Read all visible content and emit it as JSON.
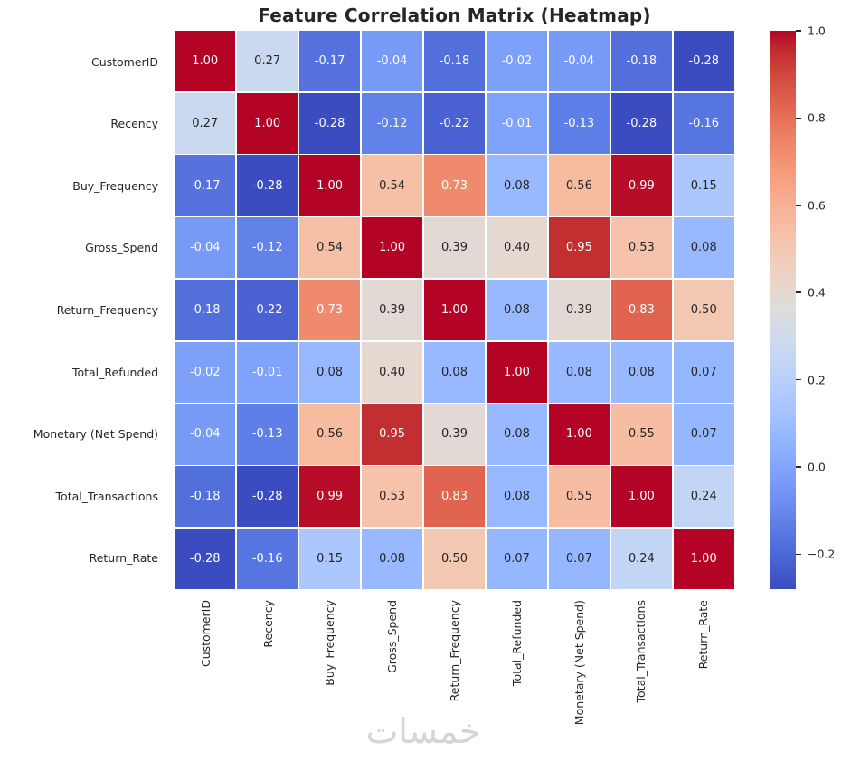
{
  "watermark_text": "خمسات",
  "colors": {
    "annot_dark": "#262626",
    "annot_light": "#ffffff",
    "axis_label": "#262626",
    "background": "#ffffff",
    "watermark": "#d5d5d5",
    "diag_red": "#b40426",
    "min_blue": "#3b4cc0"
  },
  "chart_data": {
    "type": "heatmap",
    "title": "Feature Correlation Matrix (Heatmap)",
    "categories": [
      "CustomerID",
      "Recency",
      "Buy_Frequency",
      "Gross_Spend",
      "Return_Frequency",
      "Total_Refunded",
      "Monetary (Net Spend)",
      "Total_Transactions",
      "Return_Rate"
    ],
    "matrix": [
      [
        1.0,
        0.27,
        -0.17,
        -0.04,
        -0.18,
        -0.02,
        -0.04,
        -0.18,
        -0.28
      ],
      [
        0.27,
        1.0,
        -0.28,
        -0.12,
        -0.22,
        -0.01,
        -0.13,
        -0.28,
        -0.16
      ],
      [
        -0.17,
        -0.28,
        1.0,
        0.54,
        0.73,
        0.08,
        0.56,
        0.99,
        0.15
      ],
      [
        -0.04,
        -0.12,
        0.54,
        1.0,
        0.39,
        0.4,
        0.95,
        0.53,
        0.08
      ],
      [
        -0.18,
        -0.22,
        0.73,
        0.39,
        1.0,
        0.08,
        0.39,
        0.83,
        0.5
      ],
      [
        -0.02,
        -0.01,
        0.08,
        0.4,
        0.08,
        1.0,
        0.08,
        0.08,
        0.07
      ],
      [
        -0.04,
        -0.13,
        0.56,
        0.95,
        0.39,
        0.08,
        1.0,
        0.55,
        0.07
      ],
      [
        -0.18,
        -0.28,
        0.99,
        0.53,
        0.83,
        0.08,
        0.55,
        1.0,
        0.24
      ],
      [
        -0.28,
        -0.16,
        0.15,
        0.08,
        0.5,
        0.07,
        0.07,
        0.24,
        1.0
      ]
    ],
    "value_format_decimals": 2,
    "colormap": "coolwarm",
    "vmin": -0.28,
    "vmax": 1.0,
    "annotations": true,
    "grid": false,
    "legend_position": "none",
    "colorbar": {
      "position": "right",
      "tick_labels": [
        "1.0",
        "0.8",
        "0.6",
        "0.4",
        "0.2",
        "0.0",
        "−0.2"
      ],
      "tick_values": [
        1.0,
        0.8,
        0.6,
        0.4,
        0.2,
        0.0,
        -0.2
      ]
    }
  }
}
